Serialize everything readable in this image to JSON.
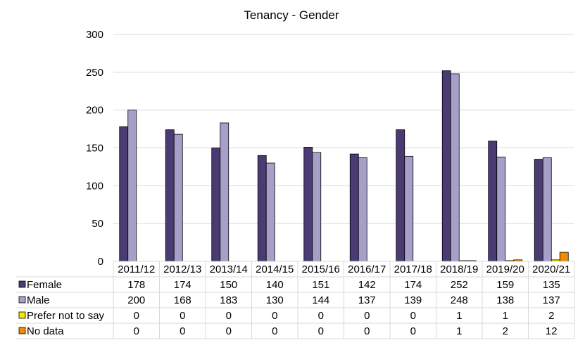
{
  "chart_data": {
    "type": "bar",
    "title": "Tenancy - Gender",
    "xlabel": "",
    "ylabel": "",
    "ylim": [
      0,
      300
    ],
    "yticks": [
      0,
      50,
      100,
      150,
      200,
      250,
      300
    ],
    "grid": true,
    "legend": "data-table-below",
    "categories": [
      "2011/12",
      "2012/13",
      "2013/14",
      "2014/15",
      "2015/16",
      "2016/17",
      "2017/18",
      "2018/19",
      "2019/20",
      "2020/21"
    ],
    "series": [
      {
        "name": "Female",
        "color": "#4b3b73",
        "values": [
          178,
          174,
          150,
          140,
          151,
          142,
          174,
          252,
          159,
          135
        ]
      },
      {
        "name": "Male",
        "color": "#a6a0c8",
        "values": [
          200,
          168,
          183,
          130,
          144,
          137,
          139,
          248,
          138,
          137
        ]
      },
      {
        "name": "Prefer not to say",
        "color": "#f5e600",
        "values": [
          0,
          0,
          0,
          0,
          0,
          0,
          0,
          1,
          1,
          2
        ]
      },
      {
        "name": "No data",
        "color": "#f08c00",
        "values": [
          0,
          0,
          0,
          0,
          0,
          0,
          0,
          1,
          2,
          12
        ]
      }
    ]
  }
}
